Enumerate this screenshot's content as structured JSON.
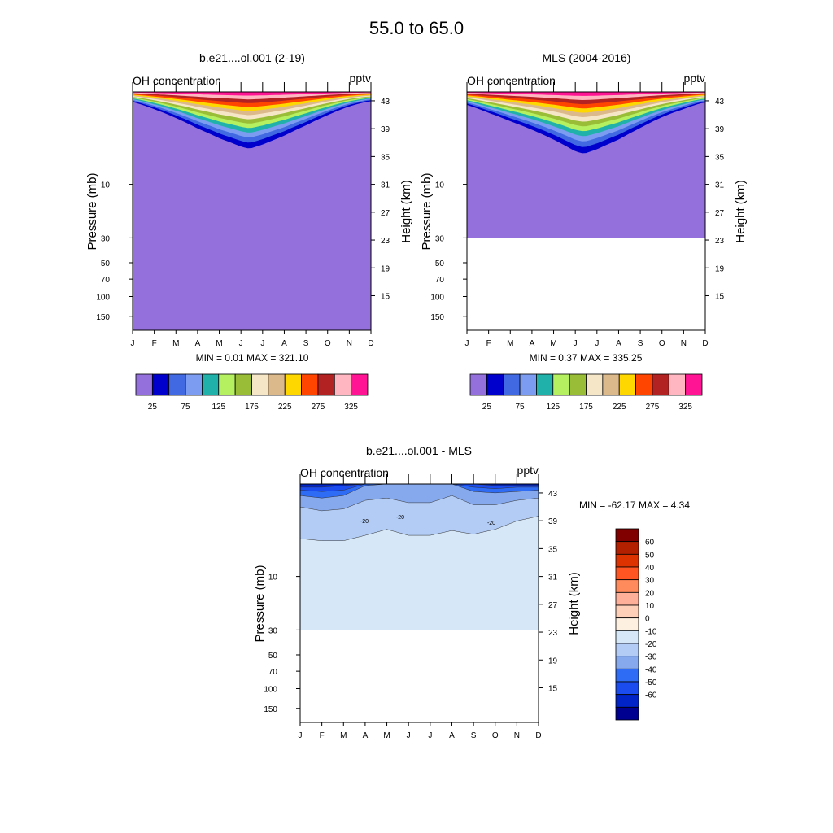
{
  "figure": {
    "title": "55.0 to  65.0"
  },
  "chart_data": [
    {
      "type": "contour",
      "panel_title": "b.e21....ol.001 (2-19)",
      "var_label": "OH concentration",
      "units": "pptv",
      "left_axis_label": "Pressure (mb)",
      "right_axis_label": "Height (km)",
      "x_ticks": [
        "J",
        "F",
        "M",
        "A",
        "M",
        "J",
        "J",
        "A",
        "S",
        "O",
        "N",
        "D"
      ],
      "pressure_ticks": [
        "10",
        "30",
        "50",
        "70",
        "100",
        "150"
      ],
      "pressure_values": [
        10,
        30,
        50,
        70,
        100,
        150
      ],
      "pressure_range_mb": [
        1.5,
        200
      ],
      "height_ticks": [
        "43",
        "39",
        "35",
        "31",
        "27",
        "23",
        "19",
        "15"
      ],
      "height_values": [
        43,
        39,
        35,
        31,
        27,
        23,
        19,
        15
      ],
      "stats": "MIN =   0.01  MAX = 321.10",
      "data_bottom_mb": null,
      "contour_levels": [
        25,
        50,
        75,
        100,
        125,
        150,
        175,
        200,
        225,
        250,
        275,
        300,
        325
      ],
      "contour_lowest_mb_by_month": [
        2.7,
        3.3,
        4.0,
        4.8,
        5.4,
        5.7,
        5.6,
        5.2,
        4.5,
        3.7,
        3.0,
        2.6
      ],
      "peak_value": 321.1,
      "colorbar_labels": [
        "25",
        "75",
        "125",
        "175",
        "225",
        "275",
        "325"
      ]
    },
    {
      "type": "contour",
      "panel_title": "MLS (2004-2016)",
      "var_label": "OH concentration",
      "units": "pptv",
      "left_axis_label": "Pressure (mb)",
      "right_axis_label": "Height (km)",
      "x_ticks": [
        "J",
        "F",
        "M",
        "A",
        "M",
        "J",
        "J",
        "A",
        "S",
        "O",
        "N",
        "D"
      ],
      "pressure_ticks": [
        "10",
        "30",
        "50",
        "70",
        "100",
        "150"
      ],
      "pressure_values": [
        10,
        30,
        50,
        70,
        100,
        150
      ],
      "pressure_range_mb": [
        1.5,
        200
      ],
      "height_ticks": [
        "43",
        "39",
        "35",
        "31",
        "27",
        "23",
        "19",
        "15"
      ],
      "height_values": [
        43,
        39,
        35,
        31,
        27,
        23,
        19,
        15
      ],
      "stats": "MIN =   0.37  MAX = 335.25",
      "data_bottom_mb": 30,
      "contour_levels": [
        25,
        50,
        75,
        100,
        125,
        150,
        175,
        200,
        225,
        250,
        275,
        300,
        325
      ],
      "contour_lowest_mb_by_month": [
        3.2,
        3.9,
        4.5,
        5.0,
        5.6,
        6.4,
        6.3,
        5.8,
        4.9,
        4.0,
        3.4,
        2.8
      ],
      "peak_value": 335.25,
      "colorbar_labels": [
        "25",
        "75",
        "125",
        "175",
        "225",
        "275",
        "325"
      ]
    },
    {
      "type": "contour",
      "panel_title": "b.e21....ol.001 - MLS",
      "var_label": "OH concentration",
      "units": "pptv",
      "left_axis_label": "Pressure (mb)",
      "right_axis_label": "Height (km)",
      "x_ticks": [
        "J",
        "F",
        "M",
        "A",
        "M",
        "J",
        "J",
        "A",
        "S",
        "O",
        "N",
        "D"
      ],
      "pressure_ticks": [
        "10",
        "30",
        "50",
        "70",
        "100",
        "150"
      ],
      "pressure_values": [
        10,
        30,
        50,
        70,
        100,
        150
      ],
      "pressure_range_mb": [
        1.5,
        200
      ],
      "height_ticks": [
        "43",
        "39",
        "35",
        "31",
        "27",
        "23",
        "19",
        "15"
      ],
      "height_values": [
        43,
        39,
        35,
        31,
        27,
        23,
        19,
        15
      ],
      "stats": "MIN = -62.17  MAX =   4.34",
      "data_bottom_mb": 30,
      "contour_line_labels": [
        "-20",
        "-20",
        "-20"
      ],
      "diff_boundaries_mb_by_month": {
        "minus10": [
          4.6,
          4.8,
          4.8,
          4.3,
          3.8,
          4.3,
          4.3,
          3.9,
          4.2,
          3.8,
          3.2,
          2.9
        ],
        "minus20": [
          2.4,
          2.6,
          2.5,
          2.1,
          2.0,
          2.2,
          2.2,
          1.9,
          2.3,
          2.3,
          2.1,
          2.0
        ],
        "minus30": [
          1.9,
          2.0,
          1.9,
          1.55,
          1.5,
          1.5,
          1.5,
          1.5,
          1.75,
          1.8,
          1.75,
          1.7
        ],
        "minus40": [
          1.7,
          1.75,
          1.7,
          1.5,
          1.5,
          1.5,
          1.5,
          1.5,
          1.6,
          1.65,
          1.6,
          1.6
        ],
        "minus50": [
          1.6,
          1.6,
          1.55,
          1.5,
          1.5,
          1.5,
          1.5,
          1.5,
          1.5,
          1.55,
          1.55,
          1.55
        ]
      },
      "colorbar_labels": [
        "60",
        "50",
        "40",
        "30",
        "20",
        "10",
        "0",
        "-10",
        "-20",
        "-30",
        "-40",
        "-50",
        "-60"
      ]
    }
  ],
  "colors": {
    "oh_palette": [
      "#9370db",
      "#0000cd",
      "#4169e1",
      "#7b9cf0",
      "#20b2aa",
      "#b5f060",
      "#9abd37",
      "#f5e6c8",
      "#dcb98a",
      "#ffd700",
      "#ff4500",
      "#b22222",
      "#ffb6c1",
      "#ff1493"
    ],
    "diff_palette": [
      "#800000",
      "#b22000",
      "#dd3300",
      "#ff5522",
      "#ff8a5c",
      "#ffb098",
      "#ffd0b8",
      "#fdf0e0",
      "#d6e8f8",
      "#b3ccf5",
      "#86a9ee",
      "#2f6cf5",
      "#1a4cf0",
      "#0024c8",
      "#000090"
    ]
  }
}
